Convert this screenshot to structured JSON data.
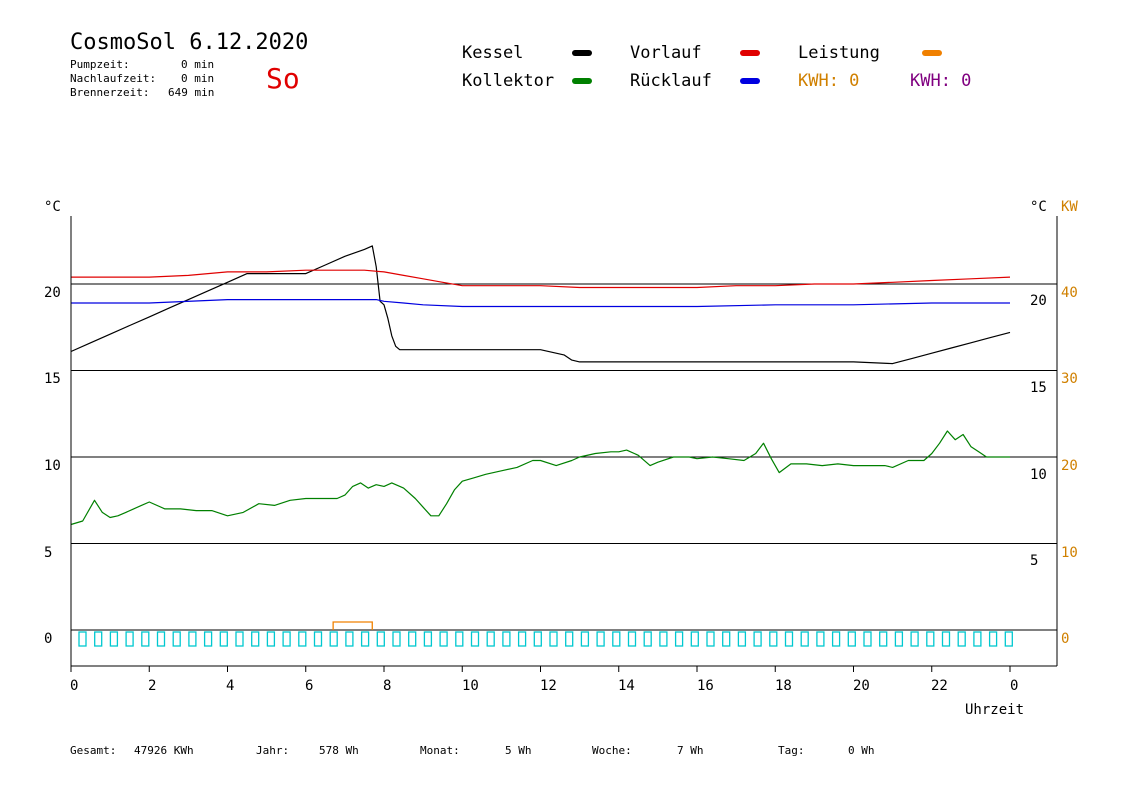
{
  "header": {
    "title": "CosmoSol 6.12.2020",
    "day_label": "So",
    "pump_label": "Pumpzeit:",
    "pump_value": "0 min",
    "nachlauf_label": "Nachlaufzeit:",
    "nachlauf_value": "0 min",
    "brenner_label": "Brennerzeit:",
    "brenner_value": "649 min"
  },
  "legend": {
    "kessel": "Kessel",
    "vorlauf": "Vorlauf",
    "leistung": "Leistung",
    "kollektor": "Kollektor",
    "ruecklauf": "Rücklauf",
    "kwh1": "KWH: 0",
    "kwh2": "KWH: 0",
    "colors": {
      "kessel": "#000000",
      "vorlauf": "#e00000",
      "leistung": "#f08000",
      "kollektor": "#008000",
      "ruecklauf": "#0000e0",
      "kwh1": "#d08000",
      "kwh2": "#800080"
    }
  },
  "chart_data": {
    "type": "line",
    "x_unit_label": "Uhrzeit",
    "y_left_unit": "°C",
    "y_right_unit_c": "°C",
    "y_right_unit_kw": "KW",
    "x_ticks": [
      "0",
      "2",
      "4",
      "6",
      "8",
      "10",
      "12",
      "14",
      "16",
      "18",
      "20",
      "22",
      "0"
    ],
    "y_left_ticks": [
      "20",
      "15",
      "10",
      "5",
      "0"
    ],
    "y_right_c_ticks": [
      "20",
      "15",
      "10",
      "5"
    ],
    "y_right_kw_ticks": [
      "40",
      "30",
      "20",
      "10",
      "0"
    ],
    "xlim": [
      0,
      24
    ],
    "ylim": [
      -2,
      25
    ],
    "series": [
      {
        "name": "Kessel",
        "color": "#000000",
        "x": [
          0,
          0.5,
          1,
          1.5,
          2,
          2.5,
          3,
          3.5,
          4,
          4.5,
          5,
          5.5,
          6,
          6.5,
          7,
          7.5,
          7.7,
          7.8,
          7.9,
          8,
          8.1,
          8.2,
          8.3,
          8.4,
          8.5,
          9,
          10,
          11,
          12,
          12.6,
          12.8,
          13,
          14,
          15,
          16,
          17,
          18,
          19,
          20,
          21,
          21.5,
          22,
          22.5,
          23,
          23.5,
          24
        ],
        "y": [
          16.1,
          16.6,
          17.1,
          17.6,
          18.1,
          18.6,
          19.1,
          19.6,
          20.1,
          20.6,
          20.6,
          20.6,
          20.6,
          21.1,
          21.6,
          22.0,
          22.2,
          21.0,
          19.0,
          18.8,
          18.0,
          17.0,
          16.4,
          16.2,
          16.2,
          16.2,
          16.2,
          16.2,
          16.2,
          15.9,
          15.6,
          15.5,
          15.5,
          15.5,
          15.5,
          15.5,
          15.5,
          15.5,
          15.5,
          15.4,
          15.7,
          16.0,
          16.3,
          16.6,
          16.9,
          17.2
        ]
      },
      {
        "name": "Vorlauf",
        "color": "#e00000",
        "x": [
          0,
          1,
          2,
          3,
          4,
          5,
          6,
          7,
          7.5,
          8,
          8.5,
          9,
          9.5,
          10,
          11,
          12,
          13,
          14,
          15,
          16,
          17,
          18,
          19,
          20,
          21,
          22,
          23,
          24
        ],
        "y": [
          20.4,
          20.4,
          20.4,
          20.5,
          20.7,
          20.7,
          20.8,
          20.8,
          20.8,
          20.7,
          20.5,
          20.3,
          20.1,
          19.9,
          19.9,
          19.9,
          19.8,
          19.8,
          19.8,
          19.8,
          19.9,
          19.9,
          20.0,
          20.0,
          20.1,
          20.2,
          20.3,
          20.4
        ]
      },
      {
        "name": "Rücklauf",
        "color": "#0000e0",
        "x": [
          0,
          2,
          4,
          6,
          7,
          7.8,
          8,
          8.5,
          9,
          10,
          12,
          14,
          16,
          18,
          20,
          22,
          24
        ],
        "y": [
          18.9,
          18.9,
          19.1,
          19.1,
          19.1,
          19.1,
          19.0,
          18.9,
          18.8,
          18.7,
          18.7,
          18.7,
          18.7,
          18.8,
          18.8,
          18.9,
          18.9
        ]
      },
      {
        "name": "Kollektor",
        "color": "#008000",
        "x": [
          0,
          0.3,
          0.6,
          0.8,
          1,
          1.2,
          1.4,
          1.6,
          1.8,
          2,
          2.4,
          2.8,
          3.2,
          3.6,
          4,
          4.4,
          4.8,
          5.2,
          5.6,
          6,
          6.4,
          6.8,
          7,
          7.2,
          7.4,
          7.6,
          7.8,
          8,
          8.2,
          8.5,
          8.8,
          9,
          9.2,
          9.4,
          9.6,
          9.8,
          10,
          10.3,
          10.6,
          11,
          11.4,
          11.8,
          12,
          12.4,
          12.8,
          13,
          13.4,
          13.8,
          14,
          14.2,
          14.5,
          14.8,
          15,
          15.4,
          15.8,
          16,
          16.4,
          16.8,
          17.2,
          17.5,
          17.7,
          17.9,
          18.1,
          18.4,
          18.8,
          19.2,
          19.6,
          20,
          20.4,
          20.8,
          21,
          21.4,
          21.8,
          22,
          22.2,
          22.4,
          22.6,
          22.8,
          23,
          23.2,
          23.4,
          23.6,
          24
        ],
        "y": [
          6.1,
          6.3,
          7.5,
          6.8,
          6.5,
          6.6,
          6.8,
          7.0,
          7.2,
          7.4,
          7.0,
          7.0,
          6.9,
          6.9,
          6.6,
          6.8,
          7.3,
          7.2,
          7.5,
          7.6,
          7.6,
          7.6,
          7.8,
          8.3,
          8.5,
          8.2,
          8.4,
          8.3,
          8.5,
          8.2,
          7.6,
          7.1,
          6.6,
          6.6,
          7.3,
          8.1,
          8.6,
          8.8,
          9.0,
          9.2,
          9.4,
          9.8,
          9.8,
          9.5,
          9.8,
          10.0,
          10.2,
          10.3,
          10.3,
          10.4,
          10.1,
          9.5,
          9.7,
          10.0,
          10.0,
          9.9,
          10.0,
          9.9,
          9.8,
          10.2,
          10.8,
          9.9,
          9.1,
          9.6,
          9.6,
          9.5,
          9.6,
          9.5,
          9.5,
          9.5,
          9.4,
          9.8,
          9.8,
          10.2,
          10.8,
          11.5,
          11.0,
          11.3,
          10.6,
          10.3,
          10.0,
          10.0,
          10.0
        ]
      }
    ],
    "grid": "horizontal",
    "legend_position": "top"
  },
  "footer": {
    "gesamt_label": "Gesamt:",
    "gesamt_value": "47926 KWh",
    "jahr_label": "Jahr:",
    "jahr_value": "578 Wh",
    "monat_label": "Monat:",
    "monat_value": "5 Wh",
    "woche_label": "Woche:",
    "woche_value": "7 Wh",
    "tag_label": "Tag:",
    "tag_value": "0 Wh"
  }
}
